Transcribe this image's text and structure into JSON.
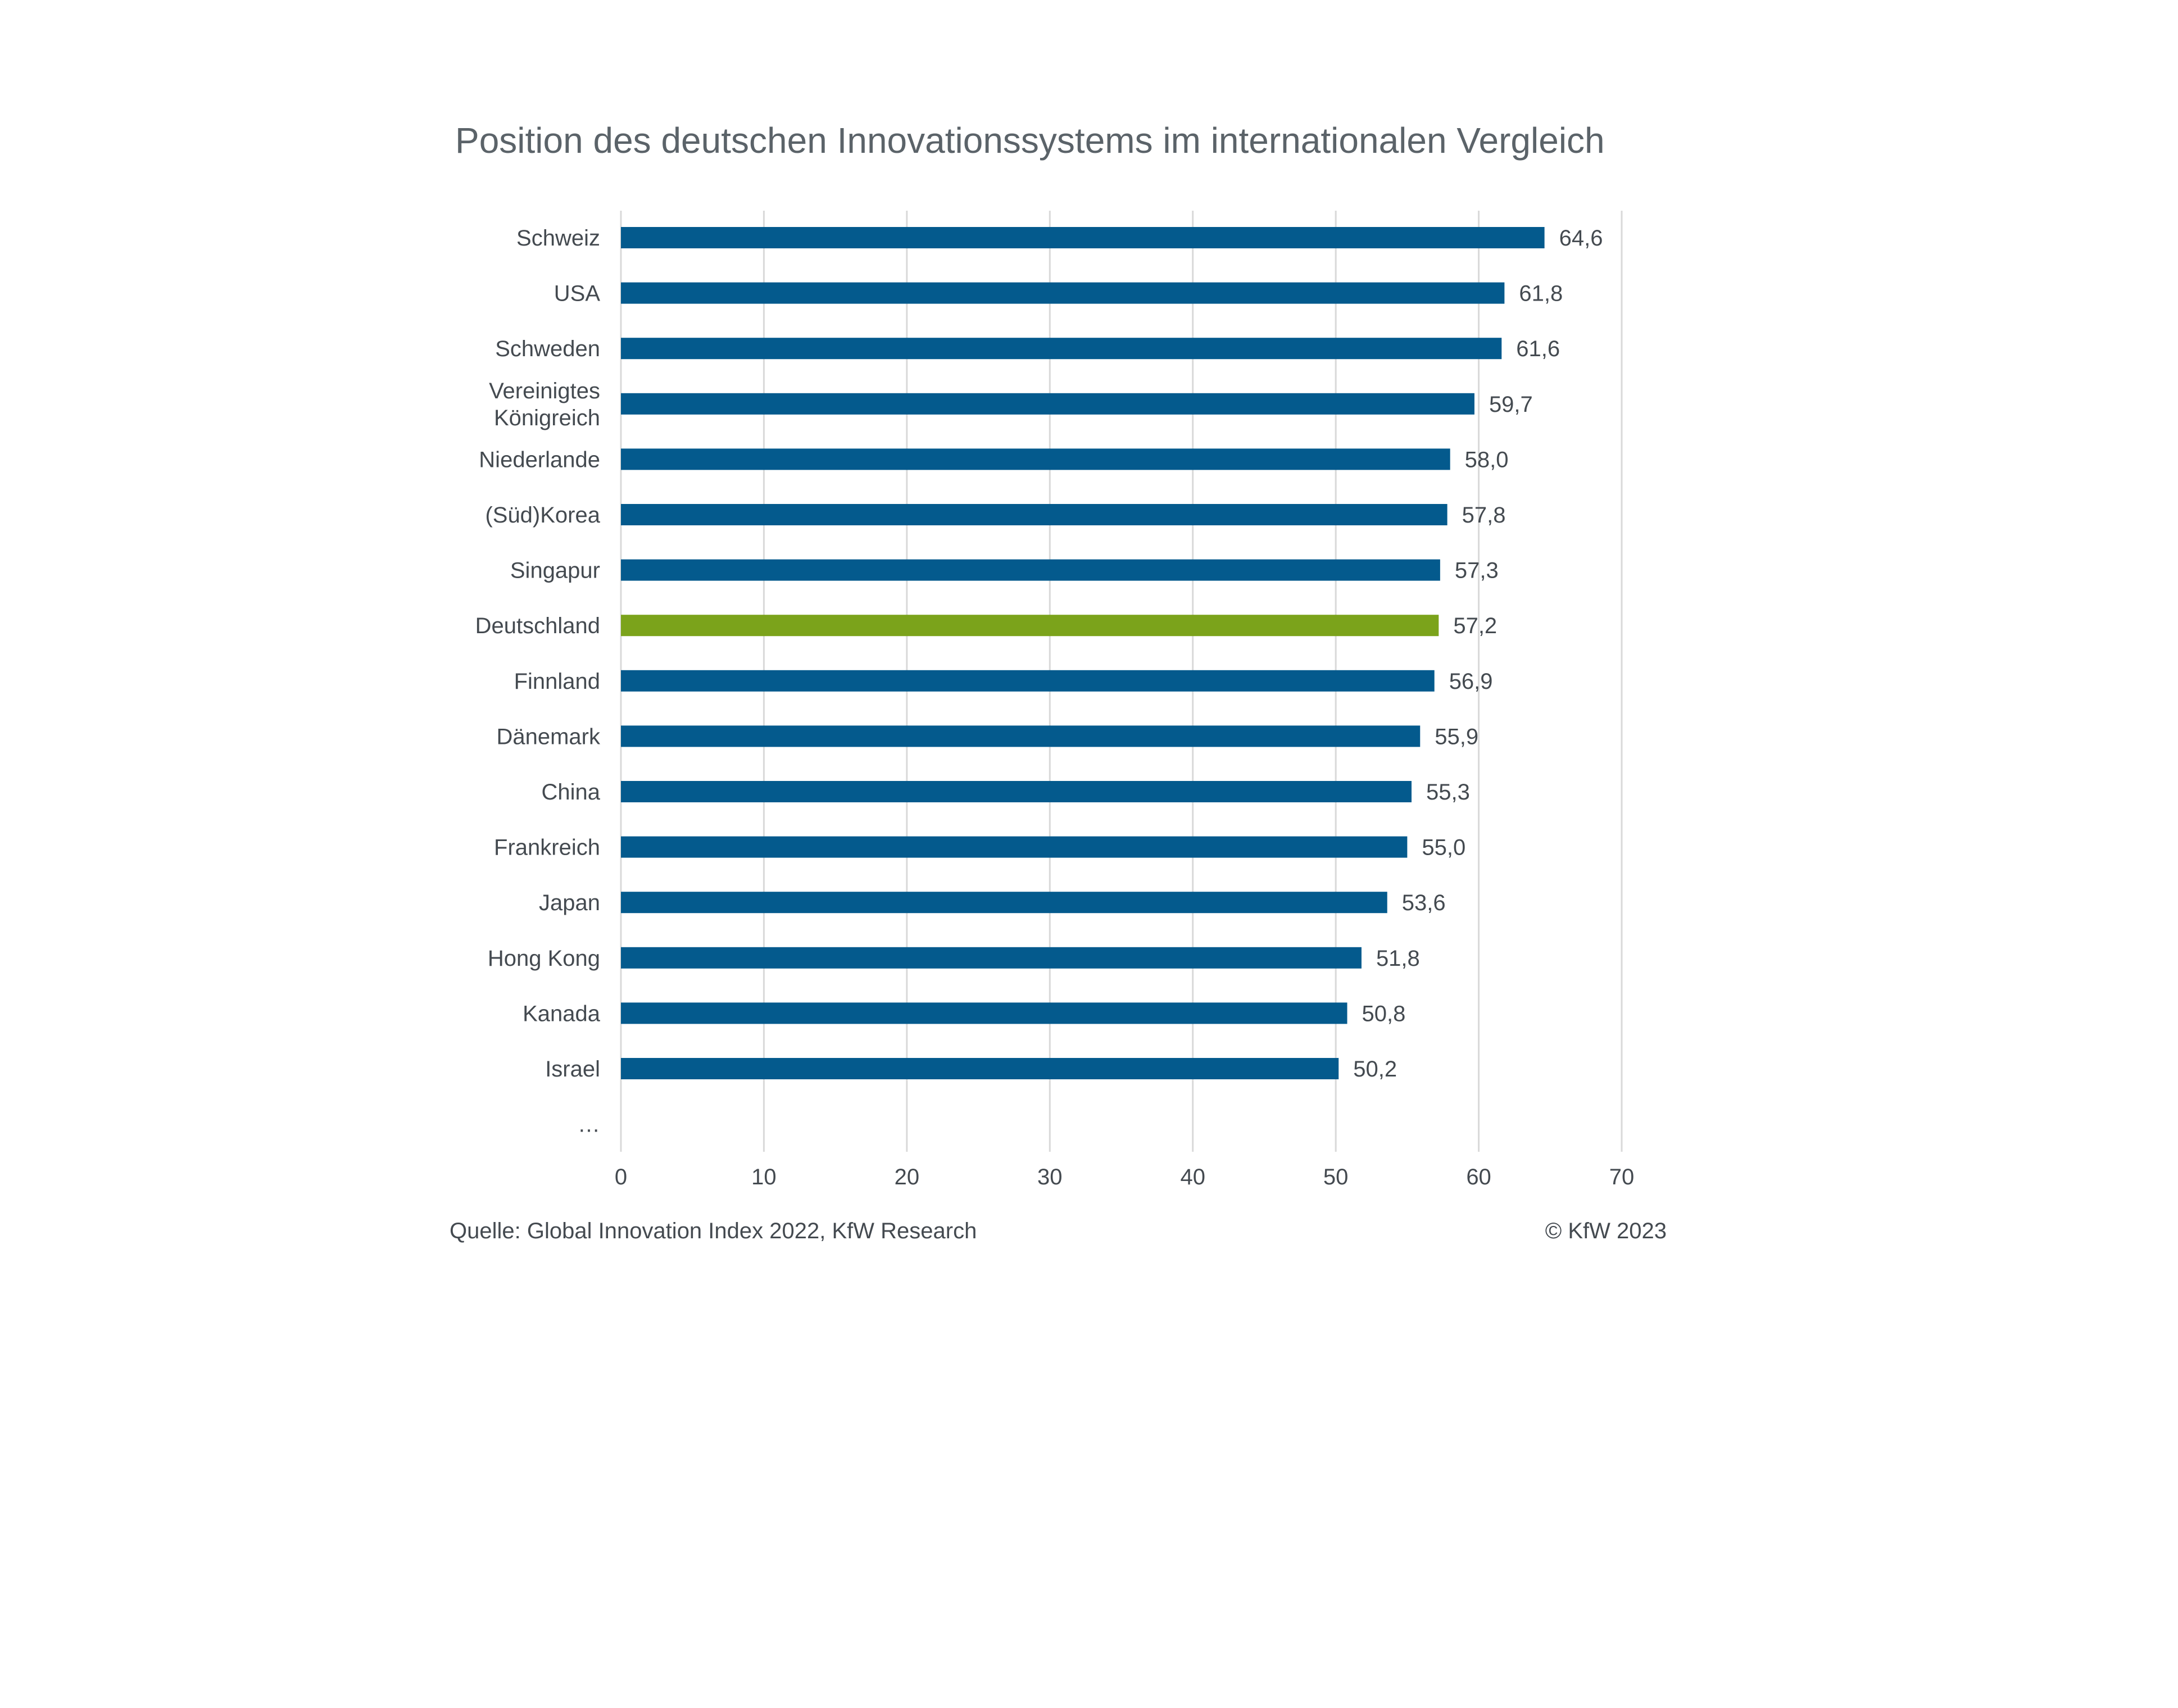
{
  "chart_data": {
    "type": "bar",
    "orientation": "horizontal",
    "title": "Position des deutschen Innovationssystems im internationalen Vergleich",
    "categories": [
      "Schweiz",
      "USA",
      "Schweden",
      "Vereinigtes Königreich",
      "Niederlande",
      "(Süd)Korea",
      "Singapur",
      "Deutschland",
      "Finnland",
      "Dänemark",
      "China",
      "Frankreich",
      "Japan",
      "Hong Kong",
      "Kanada",
      "Israel",
      "…"
    ],
    "category_lines": [
      [
        "Schweiz"
      ],
      [
        "USA"
      ],
      [
        "Schweden"
      ],
      [
        "Vereinigtes",
        "Königreich"
      ],
      [
        "Niederlande"
      ],
      [
        "(Süd)Korea"
      ],
      [
        "Singapur"
      ],
      [
        "Deutschland"
      ],
      [
        "Finnland"
      ],
      [
        "Dänemark"
      ],
      [
        "China"
      ],
      [
        "Frankreich"
      ],
      [
        "Japan"
      ],
      [
        "Hong Kong"
      ],
      [
        "Kanada"
      ],
      [
        "Israel"
      ],
      [
        "…"
      ]
    ],
    "values": [
      64.6,
      61.8,
      61.6,
      59.7,
      58.0,
      57.8,
      57.3,
      57.2,
      56.9,
      55.9,
      55.3,
      55.0,
      53.6,
      51.8,
      50.8,
      50.2,
      null
    ],
    "value_labels": [
      "64,6",
      "61,8",
      "61,6",
      "59,7",
      "58,0",
      "57,8",
      "57,3",
      "57,2",
      "56,9",
      "55,9",
      "55,3",
      "55,0",
      "53,6",
      "51,8",
      "50,8",
      "50,2",
      ""
    ],
    "highlight_index": 7,
    "xlim": [
      0,
      70
    ],
    "xticks": [
      0,
      10,
      20,
      30,
      40,
      50,
      60,
      70
    ],
    "xtick_labels": [
      "0",
      "10",
      "20",
      "30",
      "40",
      "50",
      "60",
      "70"
    ],
    "xlabel": "",
    "ylabel": "",
    "grid": "vertical",
    "legend": "none",
    "colors": {
      "bar": "#045a8d",
      "highlight": "#7ba31b",
      "grid": "#d9d9d9",
      "text": "#444a50",
      "title": "#5b6369"
    }
  },
  "footer": {
    "source": "Quelle: Global Innovation Index 2022, KfW Research",
    "copyright": "© KfW 2023"
  }
}
